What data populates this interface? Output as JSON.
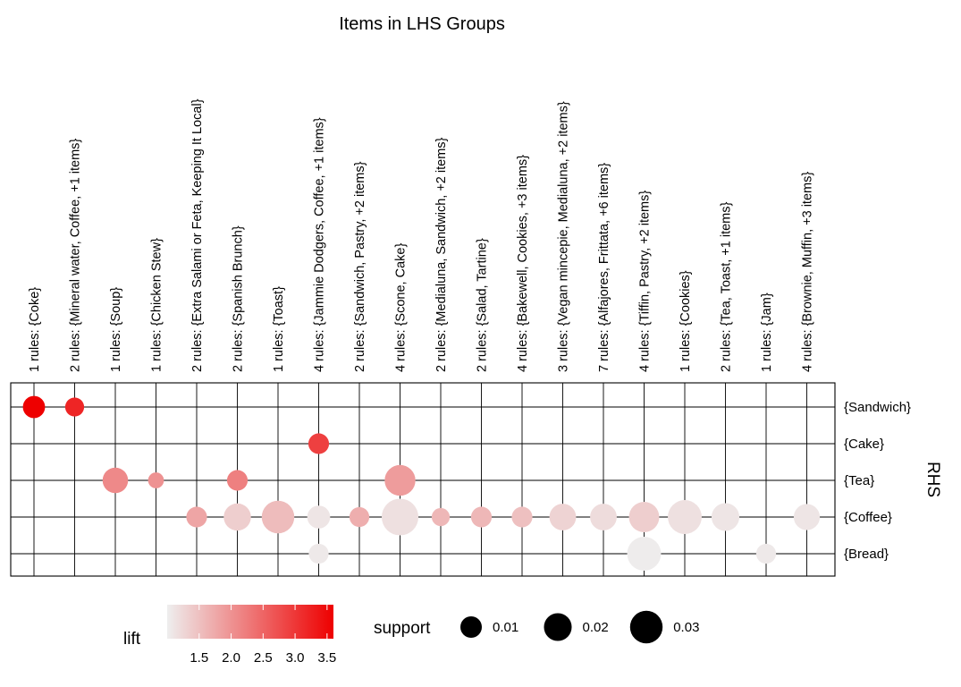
{
  "chart_data": {
    "type": "scatter",
    "title": "Items in LHS Groups",
    "ylabel": "RHS",
    "columns": [
      "1 rules: {Coke}",
      "2 rules: {Mineral water, Coffee, +1 items}",
      "1 rules: {Soup}",
      "1 rules: {Chicken Stew}",
      "2 rules: {Extra Salami or Feta, Keeping It Local}",
      "2 rules: {Spanish Brunch}",
      "1 rules: {Toast}",
      "4 rules: {Jammie Dodgers, Coffee, +1 items}",
      "2 rules: {Sandwich, Pastry, +2 items}",
      "4 rules: {Scone, Cake}",
      "2 rules: {Medialuna, Sandwich, +2 items}",
      "2 rules: {Salad, Tartine}",
      "4 rules: {Bakewell, Cookies, +3 items}",
      "3 rules: {Vegan mincepie, Medialuna, +2 items}",
      "7 rules: {Alfajores, Frittata, +6 items}",
      "4 rules: {Tiffin, Pastry, +2 items}",
      "1 rules: {Cookies}",
      "2 rules: {Tea, Toast, +1 items}",
      "1 rules: {Jam}",
      "4 rules: {Brownie, Muffin, +3 items}"
    ],
    "rows": [
      "{Sandwich}",
      "{Cake}",
      "{Tea}",
      "{Coffee}",
      "{Bread}"
    ],
    "points": [
      {
        "col": 0,
        "row": "{Sandwich}",
        "lift": 3.6,
        "support": 0.011
      },
      {
        "col": 1,
        "row": "{Sandwich}",
        "lift": 3.2,
        "support": 0.007
      },
      {
        "col": 7,
        "row": "{Cake}",
        "lift": 2.9,
        "support": 0.009
      },
      {
        "col": 2,
        "row": "{Tea}",
        "lift": 2.1,
        "support": 0.016
      },
      {
        "col": 3,
        "row": "{Tea}",
        "lift": 2.0,
        "support": 0.004
      },
      {
        "col": 5,
        "row": "{Tea}",
        "lift": 2.2,
        "support": 0.009
      },
      {
        "col": 9,
        "row": "{Tea}",
        "lift": 1.9,
        "support": 0.026
      },
      {
        "col": 4,
        "row": "{Coffee}",
        "lift": 1.8,
        "support": 0.009
      },
      {
        "col": 5,
        "row": "{Coffee}",
        "lift": 1.35,
        "support": 0.019
      },
      {
        "col": 6,
        "row": "{Coffee}",
        "lift": 1.55,
        "support": 0.03
      },
      {
        "col": 7,
        "row": "{Coffee}",
        "lift": 1.1,
        "support": 0.012
      },
      {
        "col": 8,
        "row": "{Coffee}",
        "lift": 1.7,
        "support": 0.008
      },
      {
        "col": 9,
        "row": "{Coffee}",
        "lift": 1.15,
        "support": 0.04
      },
      {
        "col": 10,
        "row": "{Coffee}",
        "lift": 1.6,
        "support": 0.006
      },
      {
        "col": 11,
        "row": "{Coffee}",
        "lift": 1.6,
        "support": 0.009
      },
      {
        "col": 12,
        "row": "{Coffee}",
        "lift": 1.5,
        "support": 0.009
      },
      {
        "col": 13,
        "row": "{Coffee}",
        "lift": 1.3,
        "support": 0.018
      },
      {
        "col": 14,
        "row": "{Coffee}",
        "lift": 1.2,
        "support": 0.018
      },
      {
        "col": 15,
        "row": "{Coffee}",
        "lift": 1.35,
        "support": 0.025
      },
      {
        "col": 16,
        "row": "{Coffee}",
        "lift": 1.15,
        "support": 0.033
      },
      {
        "col": 17,
        "row": "{Coffee}",
        "lift": 1.1,
        "support": 0.02
      },
      {
        "col": 19,
        "row": "{Coffee}",
        "lift": 1.1,
        "support": 0.017
      },
      {
        "col": 7,
        "row": "{Bread}",
        "lift": 1.05,
        "support": 0.008
      },
      {
        "col": 15,
        "row": "{Bread}",
        "lift": 1.02,
        "support": 0.033
      },
      {
        "col": 18,
        "row": "{Bread}",
        "lift": 1.05,
        "support": 0.008
      }
    ],
    "color_legend": {
      "title": "lift",
      "ticks": [
        "1.5",
        "2.0",
        "2.5",
        "3.0",
        "3.5"
      ],
      "range": [
        1.0,
        3.6
      ],
      "low_color": "#eeeeee",
      "high_color": "#ee0000"
    },
    "size_legend": {
      "title": "support",
      "values": [
        0.01,
        0.02,
        0.03
      ],
      "labels": [
        "0.01",
        "0.02",
        "0.03"
      ]
    },
    "grid": true,
    "legend_position": "bottom"
  }
}
